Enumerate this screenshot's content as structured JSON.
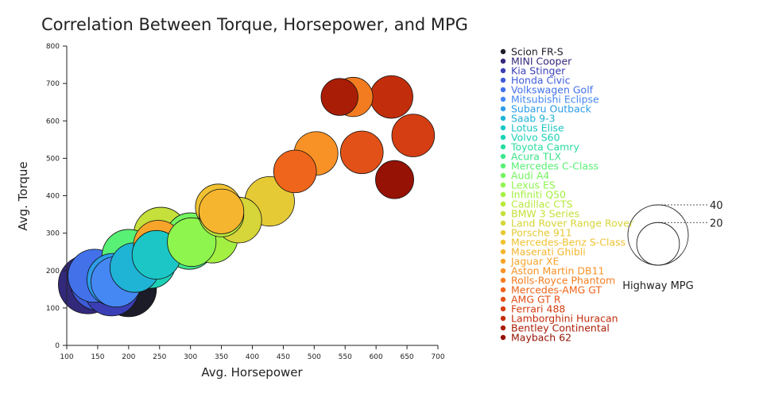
{
  "chart_data": {
    "type": "scatter",
    "title": "Correlation Between Torque, Horsepower, and MPG",
    "xlabel": "Avg. Horsepower",
    "ylabel": "Avg. Torque",
    "xlim": [
      100,
      700
    ],
    "ylim": [
      0,
      800
    ],
    "xticks": [
      100,
      150,
      200,
      250,
      300,
      350,
      400,
      450,
      500,
      550,
      600,
      650,
      700
    ],
    "yticks": [
      0,
      100,
      200,
      300,
      400,
      500,
      600,
      700,
      800
    ],
    "size_variable": "Highway MPG",
    "size_legend": {
      "title": "Highway MPG",
      "values": [
        40,
        20
      ]
    },
    "grid": false,
    "legend_position": "right",
    "series": [
      {
        "name": "Scion FR-S",
        "x": 200,
        "y": 151,
        "mpg": 34,
        "color": "#1c1c28"
      },
      {
        "name": "MINI Cooper",
        "x": 134,
        "y": 163,
        "mpg": 38,
        "color": "#33297a"
      },
      {
        "name": "Kia Stinger",
        "x": 172,
        "y": 152,
        "mpg": 33,
        "color": "#3a3fb5"
      },
      {
        "name": "Honda Civic",
        "x": 152,
        "y": 170,
        "mpg": 36,
        "color": "#3e5bd8"
      },
      {
        "name": "Volkswagen Golf",
        "x": 145,
        "y": 186,
        "mpg": 31,
        "color": "#4271ea"
      },
      {
        "name": "Mitsubishi Eclipse",
        "x": 180,
        "y": 170,
        "mpg": 28,
        "color": "#4688f3"
      },
      {
        "name": "Subaru Outback",
        "x": 175,
        "y": 176,
        "mpg": 30,
        "color": "#2d9de8"
      },
      {
        "name": "Saab 9-3",
        "x": 210,
        "y": 208,
        "mpg": 27,
        "color": "#1fb3d6"
      },
      {
        "name": "Lotus Elise",
        "x": 245,
        "y": 242,
        "mpg": 26,
        "color": "#1cc6c6"
      },
      {
        "name": "Volvo S60",
        "x": 235,
        "y": 220,
        "mpg": 28,
        "color": "#1dd1b7"
      },
      {
        "name": "Toyota Camry",
        "x": 195,
        "y": 190,
        "mpg": 35,
        "color": "#28dca2"
      },
      {
        "name": "Acura TLX",
        "x": 298,
        "y": 272,
        "mpg": 29,
        "color": "#3ee68c"
      },
      {
        "name": "Mercedes C-Class",
        "x": 200,
        "y": 239,
        "mpg": 31,
        "color": "#58f075"
      },
      {
        "name": "Audi A4",
        "x": 300,
        "y": 288,
        "mpg": 27,
        "color": "#74f560"
      },
      {
        "name": "Lexus ES",
        "x": 302,
        "y": 276,
        "mpg": 26,
        "color": "#8ef54e"
      },
      {
        "name": "Infiniti Q50",
        "x": 335,
        "y": 289,
        "mpg": 29,
        "color": "#a3f042"
      },
      {
        "name": "Cadillac CTS",
        "x": 350,
        "y": 350,
        "mpg": 22,
        "color": "#b8e83c"
      },
      {
        "name": "BMW 3 Series",
        "x": 252,
        "y": 297,
        "mpg": 32,
        "color": "#c5e03a"
      },
      {
        "name": "Land Rover Range Rover",
        "x": 378,
        "y": 335,
        "mpg": 23,
        "color": "#d6d53a"
      },
      {
        "name": "Porsche 911",
        "x": 428,
        "y": 385,
        "mpg": 27,
        "color": "#e5ca36"
      },
      {
        "name": "Mercedes-Benz S-Class",
        "x": 345,
        "y": 370,
        "mpg": 23,
        "color": "#f0c232"
      },
      {
        "name": "Maserati Ghibli",
        "x": 350,
        "y": 358,
        "mpg": 22,
        "color": "#f5b52f"
      },
      {
        "name": "Jaguar XE",
        "x": 248,
        "y": 268,
        "mpg": 27,
        "color": "#f7a42b"
      },
      {
        "name": "Aston Martin DB11",
        "x": 503,
        "y": 513,
        "mpg": 21,
        "color": "#f89226"
      },
      {
        "name": "Rolls-Royce Phantom",
        "x": 563,
        "y": 664,
        "mpg": 17,
        "color": "#f47c20"
      },
      {
        "name": "Mercedes-AMG GT",
        "x": 469,
        "y": 465,
        "mpg": 20,
        "color": "#ee651b"
      },
      {
        "name": "AMG GT R",
        "x": 577,
        "y": 516,
        "mpg": 20,
        "color": "#e25118"
      },
      {
        "name": "Ferrari 488",
        "x": 660,
        "y": 561,
        "mpg": 20,
        "color": "#d43e12"
      },
      {
        "name": "Lamborghini Huracan",
        "x": 625,
        "y": 664,
        "mpg": 20,
        "color": "#c22d0c"
      },
      {
        "name": "Bentley Continental",
        "x": 541,
        "y": 664,
        "mpg": 15,
        "color": "#a91d06"
      },
      {
        "name": "Maybach 62",
        "x": 630,
        "y": 443,
        "mpg": 16,
        "color": "#951204"
      }
    ]
  }
}
